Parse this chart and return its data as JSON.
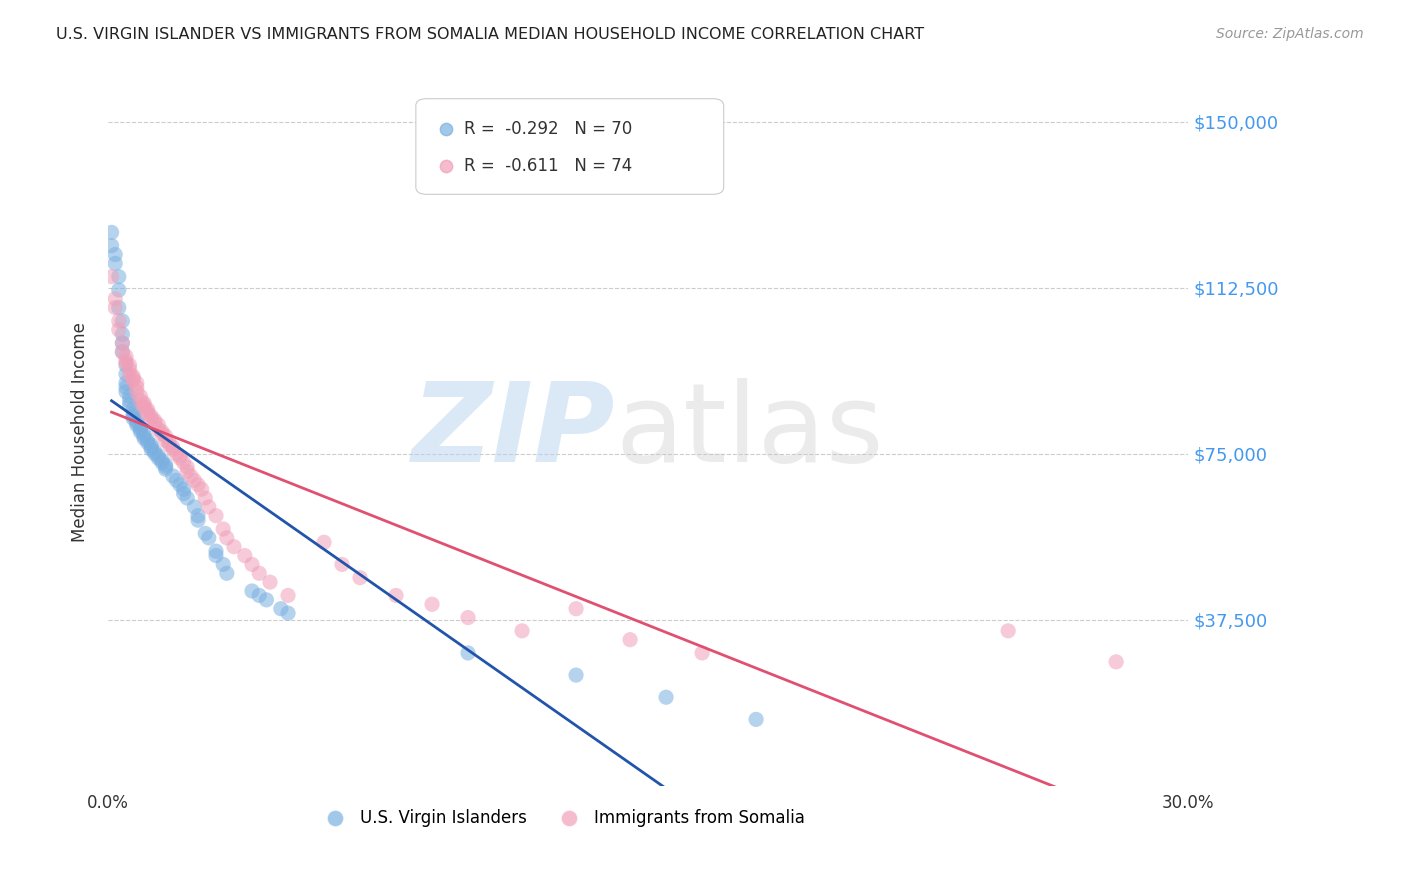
{
  "title": "U.S. VIRGIN ISLANDER VS IMMIGRANTS FROM SOMALIA MEDIAN HOUSEHOLD INCOME CORRELATION CHART",
  "source": "Source: ZipAtlas.com",
  "ylabel": "Median Household Income",
  "xlim": [
    0.0,
    0.3
  ],
  "ylim": [
    0,
    160000
  ],
  "yticks": [
    0,
    37500,
    75000,
    112500,
    150000
  ],
  "ytick_labels": [
    "",
    "$37,500",
    "$75,000",
    "$112,500",
    "$150,000"
  ],
  "xticks": [
    0.0,
    0.05,
    0.1,
    0.15,
    0.2,
    0.25,
    0.3
  ],
  "grid_color": "#cccccc",
  "background_color": "#ffffff",
  "watermark_zip": "ZIP",
  "watermark_atlas": "atlas",
  "watermark_color_zip": "#b8d4ee",
  "watermark_color_atlas": "#c8c8c8",
  "series1_label": "U.S. Virgin Islanders",
  "series1_color": "#7ab0e0",
  "series1_R": "-0.292",
  "series1_N": "70",
  "series2_label": "Immigrants from Somalia",
  "series2_color": "#f0a0b8",
  "series2_R": "-0.611",
  "series2_N": "74",
  "trend1_color": "#2255aa",
  "trend2_color": "#e05070",
  "series1_x": [
    0.001,
    0.001,
    0.002,
    0.002,
    0.003,
    0.003,
    0.003,
    0.004,
    0.004,
    0.004,
    0.004,
    0.005,
    0.005,
    0.005,
    0.005,
    0.005,
    0.006,
    0.006,
    0.006,
    0.007,
    0.007,
    0.007,
    0.007,
    0.008,
    0.008,
    0.008,
    0.009,
    0.009,
    0.009,
    0.01,
    0.01,
    0.01,
    0.011,
    0.011,
    0.012,
    0.012,
    0.012,
    0.013,
    0.013,
    0.014,
    0.014,
    0.015,
    0.015,
    0.016,
    0.016,
    0.016,
    0.018,
    0.019,
    0.02,
    0.021,
    0.021,
    0.022,
    0.024,
    0.025,
    0.025,
    0.027,
    0.028,
    0.03,
    0.03,
    0.032,
    0.033,
    0.04,
    0.042,
    0.044,
    0.048,
    0.05,
    0.1,
    0.13,
    0.155,
    0.18
  ],
  "series1_y": [
    125000,
    122000,
    120000,
    118000,
    115000,
    112000,
    108000,
    105000,
    102000,
    100000,
    98000,
    95000,
    93000,
    91000,
    90000,
    89000,
    88000,
    87000,
    86000,
    85000,
    84000,
    83500,
    83000,
    82500,
    82000,
    81500,
    81000,
    80500,
    80000,
    79500,
    79000,
    78500,
    78000,
    77500,
    77000,
    76500,
    76000,
    75500,
    75000,
    74500,
    74000,
    73500,
    73000,
    72500,
    72000,
    71500,
    70000,
    69000,
    68000,
    67000,
    66000,
    65000,
    63000,
    61000,
    60000,
    57000,
    56000,
    53000,
    52000,
    50000,
    48000,
    44000,
    43000,
    42000,
    40000,
    39000,
    30000,
    25000,
    20000,
    15000
  ],
  "series2_x": [
    0.001,
    0.002,
    0.002,
    0.003,
    0.003,
    0.004,
    0.004,
    0.005,
    0.005,
    0.005,
    0.006,
    0.006,
    0.006,
    0.007,
    0.007,
    0.007,
    0.008,
    0.008,
    0.008,
    0.009,
    0.009,
    0.01,
    0.01,
    0.01,
    0.011,
    0.011,
    0.011,
    0.012,
    0.012,
    0.013,
    0.013,
    0.014,
    0.014,
    0.015,
    0.015,
    0.016,
    0.016,
    0.017,
    0.017,
    0.018,
    0.018,
    0.019,
    0.02,
    0.02,
    0.021,
    0.022,
    0.022,
    0.023,
    0.024,
    0.025,
    0.026,
    0.027,
    0.028,
    0.03,
    0.032,
    0.033,
    0.035,
    0.038,
    0.04,
    0.042,
    0.045,
    0.05,
    0.06,
    0.065,
    0.07,
    0.08,
    0.09,
    0.1,
    0.115,
    0.13,
    0.145,
    0.165,
    0.25,
    0.28
  ],
  "series2_y": [
    115000,
    110000,
    108000,
    105000,
    103000,
    100000,
    98000,
    97000,
    96000,
    95500,
    95000,
    94000,
    93000,
    92500,
    92000,
    91500,
    91000,
    90000,
    89000,
    88000,
    87000,
    86500,
    86000,
    85500,
    85000,
    84500,
    84000,
    83500,
    83000,
    82500,
    82000,
    81500,
    80500,
    80000,
    79500,
    79000,
    78000,
    77500,
    77000,
    76500,
    76000,
    75000,
    74500,
    74000,
    73000,
    72000,
    71000,
    70000,
    69000,
    68000,
    67000,
    65000,
    63000,
    61000,
    58000,
    56000,
    54000,
    52000,
    50000,
    48000,
    46000,
    43000,
    55000,
    50000,
    47000,
    43000,
    41000,
    38000,
    35000,
    40000,
    33000,
    30000,
    35000,
    28000
  ]
}
